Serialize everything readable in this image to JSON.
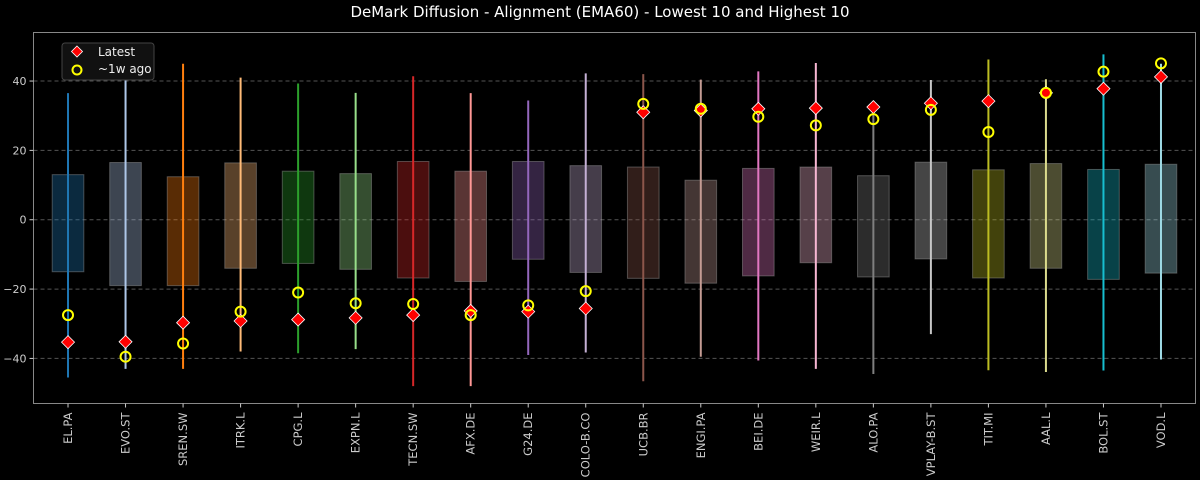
{
  "chart_data": {
    "type": "bar",
    "title": "DeMark Diffusion - Alignment (EMA60) - Lowest 10 and Highest 10",
    "xlabel": "",
    "ylabel": "",
    "ylim": [
      -53,
      54
    ],
    "yticks": [
      -40,
      -20,
      0,
      20,
      40
    ],
    "grid": true,
    "legend_placement": "top-left",
    "legend": [
      {
        "label": "Latest",
        "marker": "diamond",
        "color": "#ff0000"
      },
      {
        "label": "~1w ago",
        "marker": "circle",
        "color": "#ffff00"
      }
    ],
    "categories": [
      "EL.PA",
      "EVO.ST",
      "SREN.SW",
      "ITRK.L",
      "CPG.L",
      "EXPN.L",
      "TECN.SW",
      "AFX.DE",
      "G24.DE",
      "COLO-B.CO",
      "UCB.BR",
      "ENGI.PA",
      "BEI.DE",
      "WEIR.L",
      "ALO.PA",
      "VPLAY-B.ST",
      "TIT.MI",
      "AAL.L",
      "BOL.ST",
      "VOD.L"
    ],
    "colors": [
      "#1f77b4",
      "#aec7e8",
      "#ff7f0e",
      "#ffbb78",
      "#2ca02c",
      "#98df8a",
      "#d62728",
      "#ff9896",
      "#9467bd",
      "#c5b0d5",
      "#8c564b",
      "#c49c94",
      "#e377c2",
      "#f7b6d2",
      "#7f7f7f",
      "#c7c7c7",
      "#bcbd22",
      "#dbdb8d",
      "#17becf",
      "#9edae5"
    ],
    "box_low": [
      -15,
      -19,
      -19,
      -14,
      -12.6,
      -14.3,
      -16.8,
      -17.8,
      -11.4,
      -15.2,
      -16.9,
      -18.3,
      -16.2,
      -12.4,
      -16.5,
      -11.3,
      -16.8,
      -14,
      -17.2,
      -15.4
    ],
    "box_high": [
      13,
      16.5,
      12.4,
      16.4,
      14,
      13.3,
      16.8,
      14,
      16.8,
      15.6,
      15.2,
      11.4,
      14.8,
      15.2,
      12.7,
      16.6,
      14.4,
      16.2,
      14.5,
      16
    ],
    "range_min": [
      -45.5,
      -43,
      -43,
      -38,
      -38.5,
      -37.3,
      -48,
      -48,
      -39,
      -38.3,
      -46.6,
      -39.5,
      -40.6,
      -43,
      -44.5,
      -33,
      -43.4,
      -43.9,
      -43.5,
      -40.3
    ],
    "range_max": [
      36.5,
      49,
      45,
      41,
      39.3,
      36.6,
      41.4,
      36.5,
      34.4,
      42.2,
      42,
      40.4,
      42.8,
      45.2,
      32.5,
      40.3,
      46.2,
      40.5,
      47.7,
      45
    ],
    "series": [
      {
        "name": "Latest",
        "values": [
          -35.3,
          -35.2,
          -29.7,
          -29.2,
          -28.8,
          -28.3,
          -27.5,
          -26.3,
          -26.5,
          -25.6,
          31,
          31.5,
          32,
          32.2,
          32.5,
          33.6,
          34.2,
          36.6,
          37.8,
          41.2
        ]
      },
      {
        "name": "~1w ago",
        "values": [
          -27.5,
          -39.5,
          -35.7,
          -26.5,
          -21,
          -24.1,
          -24.3,
          -27.5,
          -24.7,
          -20.6,
          33.4,
          32,
          29.7,
          27.2,
          29,
          31.7,
          25.3,
          36.6,
          42.7,
          45.1
        ]
      }
    ]
  }
}
